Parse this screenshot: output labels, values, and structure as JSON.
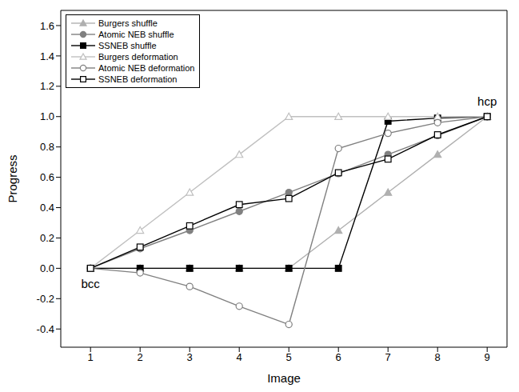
{
  "chart_data": {
    "type": "line",
    "x_label": "Image",
    "y_label": "Progress",
    "x": [
      1,
      2,
      3,
      4,
      5,
      6,
      7,
      8,
      9
    ],
    "xlim": [
      0.4,
      9.4
    ],
    "xticks": [
      1,
      2,
      3,
      4,
      5,
      6,
      7,
      8,
      9
    ],
    "ylim": [
      -0.52,
      1.7
    ],
    "yticks": [
      -0.4,
      -0.2,
      {
        "value": 0,
        "label": "0.0"
      },
      0.2,
      0.4,
      0.6,
      0.8,
      {
        "value": 1,
        "label": "1.0"
      },
      1.2,
      1.4,
      1.6
    ],
    "legend": "upper left",
    "grid": false,
    "annotations": [
      {
        "text": "bcc",
        "x": 1,
        "y": 0
      },
      {
        "text": "hcp",
        "x": 9,
        "y": 1
      }
    ],
    "series": [
      {
        "name": "Burgers shuffle",
        "color": "#b0b0b0",
        "marker": "triangle",
        "values": [
          0,
          0,
          0,
          0,
          0,
          0.25,
          0.5,
          0.75,
          1.0
        ]
      },
      {
        "name": "Atomic NEB shuffle",
        "color": "#808080",
        "marker": "circle",
        "values": [
          0,
          0.13,
          0.25,
          0.375,
          0.5,
          0.625,
          0.75,
          0.875,
          1.0
        ]
      },
      {
        "name": "SSNEB shuffle",
        "color": "#000000",
        "marker": "square",
        "values": [
          0,
          0,
          0,
          0,
          0,
          0,
          0.97,
          0.99,
          1.0
        ]
      },
      {
        "name": "Burgers deformation",
        "color": "#c0c0c0",
        "marker": "triangle-open",
        "values": [
          0,
          0.25,
          0.5,
          0.75,
          1.0,
          1.0,
          1.0,
          1.0,
          1.0
        ]
      },
      {
        "name": "Atomic NEB deformation",
        "color": "#808080",
        "marker": "circle-open",
        "values": [
          0,
          -0.03,
          -0.12,
          -0.25,
          -0.37,
          0.79,
          0.89,
          0.96,
          1.0
        ]
      },
      {
        "name": "SSNEB deformation",
        "color": "#000000",
        "marker": "square-open",
        "values": [
          0,
          0.14,
          0.28,
          0.42,
          0.46,
          0.63,
          0.72,
          0.88,
          1.0
        ]
      }
    ]
  }
}
